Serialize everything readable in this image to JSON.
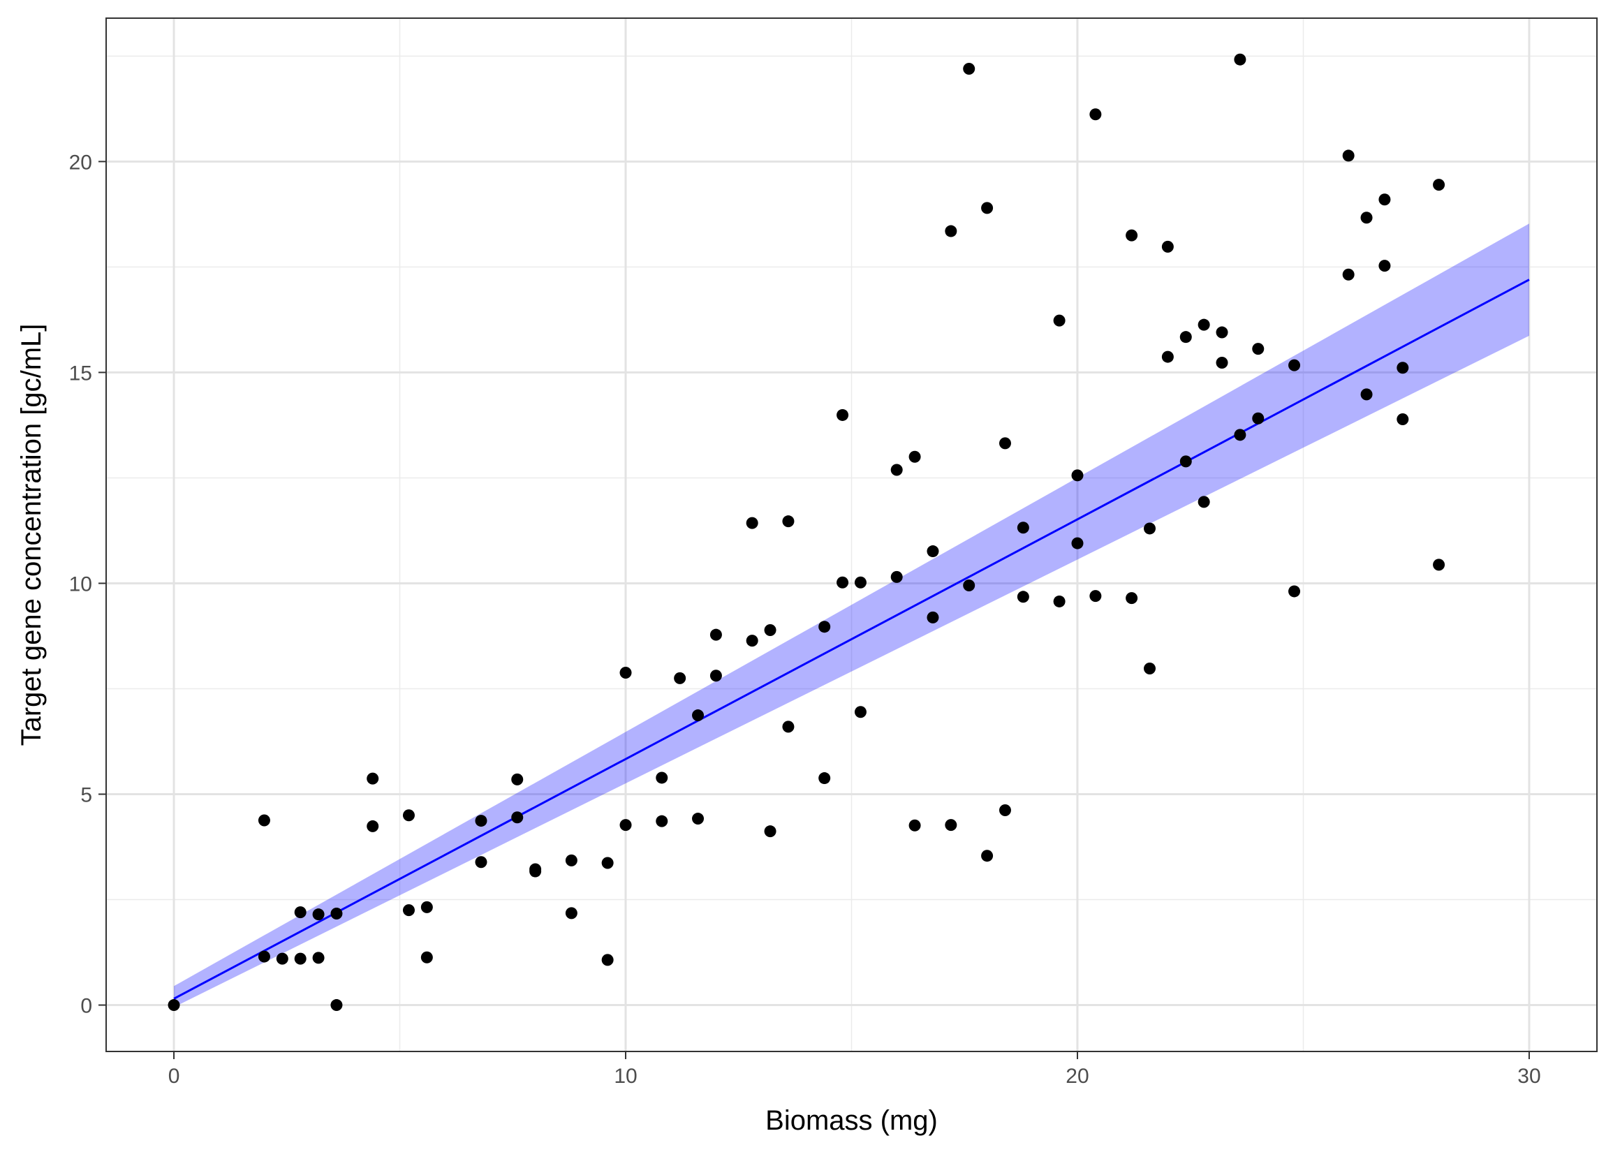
{
  "chart_data": {
    "type": "scatter",
    "xlabel": "Biomass (mg)",
    "ylabel": "Target gene concentration [gc/mL]",
    "xlim": [
      -1.5,
      31.5
    ],
    "ylim": [
      -1.1,
      23.4
    ],
    "x_ticks": [
      0,
      10,
      20,
      30
    ],
    "y_ticks": [
      0,
      5,
      10,
      15,
      20
    ],
    "x_tick_labels": [
      "0",
      "10",
      "20",
      "30"
    ],
    "y_tick_labels": [
      "0",
      "5",
      "10",
      "15",
      "20"
    ],
    "grid": true,
    "legend": "none",
    "points": {
      "color": "#000000",
      "x": [
        0,
        2,
        2,
        2.4,
        2.8,
        2.8,
        3.2,
        3.2,
        3.6,
        3.6,
        4.4,
        4.4,
        5.2,
        5.2,
        5.6,
        5.6,
        6.8,
        6.8,
        7.6,
        7.6,
        8.0,
        8.0,
        8.8,
        8.8,
        9.6,
        9.6,
        10.0,
        10.0,
        10.8,
        10.8,
        11.2,
        11.6,
        11.6,
        12.0,
        12.0,
        12.8,
        12.8,
        13.2,
        13.2,
        13.6,
        13.6,
        14.4,
        14.4,
        14.8,
        14.8,
        15.2,
        15.2,
        16.0,
        16.0,
        16.4,
        16.4,
        16.8,
        16.8,
        17.2,
        17.2,
        17.6,
        17.6,
        18.0,
        18.0,
        18.4,
        18.4,
        18.8,
        18.8,
        19.6,
        19.6,
        20.0,
        20.0,
        20.4,
        20.4,
        21.2,
        21.2,
        21.6,
        21.6,
        22.0,
        22.0,
        22.4,
        22.4,
        22.8,
        22.8,
        23.2,
        23.2,
        23.6,
        23.6,
        24.0,
        24.0,
        24.8,
        24.8,
        26.0,
        26.0,
        26.4,
        26.4,
        26.8,
        26.8,
        27.2,
        27.2,
        28.0,
        28.0
      ],
      "y": [
        0,
        4.38,
        1.15,
        1.1,
        1.1,
        2.2,
        1.12,
        2.15,
        2.17,
        0,
        5.37,
        4.24,
        4.5,
        2.25,
        2.32,
        1.13,
        4.37,
        3.39,
        5.35,
        4.45,
        3.22,
        3.17,
        3.43,
        2.18,
        3.37,
        1.07,
        7.88,
        4.27,
        5.39,
        4.36,
        7.75,
        6.87,
        4.42,
        8.78,
        7.81,
        11.43,
        8.64,
        8.89,
        4.12,
        11.47,
        6.6,
        8.97,
        5.38,
        13.99,
        10.02,
        10.02,
        6.95,
        12.69,
        10.15,
        13.0,
        4.26,
        10.76,
        9.19,
        18.35,
        4.27,
        22.2,
        9.95,
        18.9,
        3.54,
        13.32,
        4.62,
        11.32,
        9.68,
        16.23,
        9.57,
        12.56,
        10.95,
        21.12,
        9.7,
        18.25,
        9.65,
        11.3,
        7.98,
        17.98,
        15.37,
        15.84,
        12.89,
        16.13,
        11.93,
        15.95,
        15.23,
        22.42,
        13.52,
        15.56,
        13.91,
        15.17,
        9.81,
        20.14,
        17.32,
        18.67,
        14.48,
        19.1,
        17.53,
        15.11,
        13.89,
        19.45,
        10.44
      ]
    },
    "fit": {
      "type": "linear regression",
      "color": "#0000ff",
      "band_color": "#0000ff",
      "x": [
        0,
        30
      ],
      "y": [
        0.15,
        17.2
      ],
      "band_lower": [
        -0.05,
        15.87
      ],
      "band_upper": [
        0.45,
        18.53
      ]
    }
  }
}
